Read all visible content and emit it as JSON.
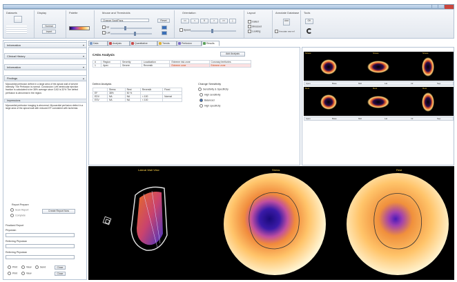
{
  "window": {
    "title": ""
  },
  "ribbon": {
    "groups": [
      {
        "title": "Datasets"
      },
      {
        "title": "Display"
      },
      {
        "title": "Palette"
      },
      {
        "title": "Mouse and Thresholds"
      },
      {
        "title": "Orientation"
      },
      {
        "title": "Layout"
      },
      {
        "title": "Annotate Database"
      },
      {
        "title": "Tools"
      }
    ],
    "datasets": {
      "btn": "",
      "label": ""
    },
    "display": {
      "btn1": "Normal",
      "btn2": "Invert"
    },
    "mouse": {
      "select": "Change Spot/Pans",
      "btn": "Reset",
      "row1": "Int",
      "row2": "Lwr"
    },
    "orientation": {
      "buttons": [
        "<<",
        "<",
        "II",
        ">",
        ">>",
        "|"
      ],
      "label": "Speed"
    },
    "layout": {
      "options": [
        "Gated",
        "Stressed",
        "Looking"
      ]
    },
    "annotate": {
      "btn": "Add",
      "label": "Annotate new ref"
    },
    "tools": {
      "btn": "OK"
    },
    "colors": {
      "accent": "#3a6fb8",
      "highlight": "#c2410c"
    }
  },
  "left": {
    "sections": [
      {
        "label": "Information"
      },
      {
        "label": "Clinical History"
      },
      {
        "label": "Information"
      },
      {
        "label": "Findings"
      }
    ],
    "findings_text": "Myocardial perfusion defect in a large area of the apical wall of severe intensity. The Perfusion is normal. Conclusion: Left ventricular ejection fraction is calculated to be 38% average since CAD is 32% The defect perfusion is abnormal in the region.",
    "impression_label": "Impressions",
    "impression_text": "Myocardial perfusion imaging is abnormal. Myocardial perfusion defect in a large area of the apical wall with reduced EF consistent with ischemia.",
    "report": {
      "title": "Report Prepare",
      "opt1": "Scan Report",
      "opt2": "Complete",
      "btn": "Create Report Now"
    },
    "fields": {
      "label1": "Finalized Report",
      "label2": "Physician",
      "label3": "Referring Physician",
      "label4": "Referring Physician"
    },
    "bottom_buttons": [
      "Print",
      "View",
      "Send",
      "Close"
    ]
  },
  "tabs": [
    {
      "label": "Data",
      "color": "#7a9bc7"
    },
    {
      "label": "Analysis",
      "color": "#c74a4a"
    },
    {
      "label": "Quantitative",
      "color": "#c74a4a"
    },
    {
      "label": "Trends",
      "color": "#e0b030"
    },
    {
      "label": "Perfusion",
      "color": "#7a6ac7"
    },
    {
      "label": "Results",
      "color": "#5aa05a"
    }
  ],
  "results": {
    "cad_title": "CADx Analysis",
    "cad_btn": "Add Analysis",
    "cad_headers": [
      "#",
      "Region",
      "Severity",
      "Localization",
      "Extreme risk zone",
      "Coronary territories"
    ],
    "cad_rows": [
      [
        "1",
        "Apex",
        "Severe",
        "Reversib",
        "Extreme zone",
        "Extreme zone"
      ]
    ],
    "defect_title": "Defect Analysis",
    "defect_headers": [
      "",
      "Stress",
      "Rest",
      "Reversib",
      "Fixed",
      "Reversible"
    ],
    "defect_rows": [
      [
        "EF",
        "38%",
        "50 %",
        "",
        "",
        ""
      ],
      [
        "EDV",
        "NA",
        "NA",
        "< 100",
        "Normal",
        ""
      ],
      [
        "ESV",
        "NA",
        "NA",
        "< 100",
        "",
        ""
      ]
    ],
    "sensitivity_title": "Change Sensitivity",
    "sensitivity_sub": "Sensitivity & Specificity",
    "sensitivity_options": [
      "High sensitivity",
      "Balanced",
      "High specificity"
    ],
    "sensitivity_selected": 1
  },
  "thumbnails": {
    "row1_labels": [
      "Stress",
      "Stress",
      "Stress"
    ],
    "row2_labels": [
      "Rest",
      "Rest",
      "Rest"
    ],
    "bar_items": [
      "Apex",
      "Base",
      "Mid",
      "Lat",
      "Inf",
      "Sep"
    ]
  },
  "viewer": {
    "label_left": "Lateral Wall View",
    "label_mid": "Stress",
    "label_right": "Rest"
  }
}
